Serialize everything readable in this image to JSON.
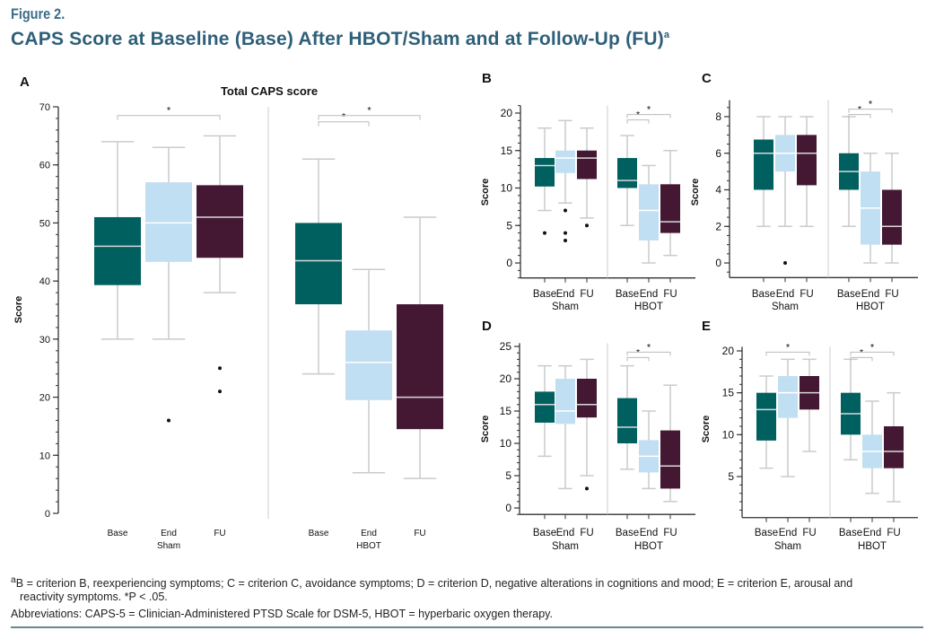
{
  "figure_label": "Figure 2.",
  "title": "CAPS Score at Baseline (Base) After HBOT/Sham and at Follow-Up (FU)",
  "title_sup": "a",
  "colors": {
    "Base": "#00605f",
    "End": "#c1dff2",
    "FU": "#441733",
    "whisker": "#c9cbcc",
    "median_dark": "#d8d8d8",
    "median_light": "#ffffff"
  },
  "footnotes": {
    "line1": "B = criterion B, reexperiencing symptoms; C = criterion C, avoidance symptoms; D = criterion D, negative alterations in cognitions and mood; E = criterion E, arousal and",
    "line1_sup": "a",
    "line2": "reactivity symptoms. *P < .05.",
    "line3": "Abbreviations: CAPS-5 = Clinician-Administered PTSD Scale for DSM-5, HBOT = hyperbaric oxygen therapy."
  },
  "chart_data": [
    {
      "panel": "A",
      "type": "box",
      "title": "Total CAPS score",
      "ylabel": "Score",
      "ylim": [
        0,
        70
      ],
      "yticks": [
        0,
        10,
        20,
        30,
        40,
        50,
        60,
        70
      ],
      "groups": [
        "Sham",
        "HBOT"
      ],
      "categories": [
        "Base",
        "End",
        "FU"
      ],
      "boxes": [
        {
          "group": "Sham",
          "cat": "Base",
          "min": 30,
          "q1": 39.3,
          "median": 46,
          "q3": 51,
          "max": 64,
          "outliers": []
        },
        {
          "group": "Sham",
          "cat": "End",
          "min": 30,
          "q1": 43.3,
          "median": 50,
          "q3": 57,
          "max": 63,
          "outliers": [
            16
          ]
        },
        {
          "group": "Sham",
          "cat": "FU",
          "min": 38,
          "q1": 44,
          "median": 51,
          "q3": 56.5,
          "max": 65,
          "outliers": [
            25,
            21
          ]
        },
        {
          "group": "HBOT",
          "cat": "Base",
          "min": 24,
          "q1": 36,
          "median": 43.5,
          "q3": 50,
          "max": 61,
          "outliers": []
        },
        {
          "group": "HBOT",
          "cat": "End",
          "min": 7,
          "q1": 19.5,
          "median": 26,
          "q3": 31.5,
          "max": 42,
          "outliers": []
        },
        {
          "group": "HBOT",
          "cat": "FU",
          "min": 6,
          "q1": 14.5,
          "median": 20,
          "q3": 36,
          "max": 51,
          "outliers": []
        }
      ],
      "significance": [
        {
          "group": "Sham",
          "from": "Base",
          "to": "FU",
          "label": "*"
        },
        {
          "group": "HBOT",
          "from": "Base",
          "to": "End",
          "label": "*"
        },
        {
          "group": "HBOT",
          "from": "Base",
          "to": "FU",
          "label": "*"
        }
      ]
    },
    {
      "panel": "B",
      "type": "box",
      "ylabel": "Score",
      "ylim": [
        -2,
        21
      ],
      "yticks": [
        0,
        5,
        10,
        15,
        20
      ],
      "groups": [
        "Sham",
        "HBOT"
      ],
      "categories": [
        "Base",
        "End",
        "FU"
      ],
      "boxes": [
        {
          "group": "Sham",
          "cat": "Base",
          "min": 7,
          "q1": 10.2,
          "median": 13,
          "q3": 14,
          "max": 18,
          "outliers": [
            4
          ]
        },
        {
          "group": "Sham",
          "cat": "End",
          "min": 8,
          "q1": 12,
          "median": 14,
          "q3": 15,
          "max": 19,
          "outliers": [
            7,
            4,
            3
          ]
        },
        {
          "group": "Sham",
          "cat": "FU",
          "min": 6,
          "q1": 11.2,
          "median": 14,
          "q3": 15,
          "max": 18,
          "outliers": [
            5
          ]
        },
        {
          "group": "HBOT",
          "cat": "Base",
          "min": 5,
          "q1": 10,
          "median": 11,
          "q3": 14,
          "max": 17,
          "outliers": []
        },
        {
          "group": "HBOT",
          "cat": "End",
          "min": 0,
          "q1": 3,
          "median": 7,
          "q3": 10.5,
          "max": 13,
          "outliers": []
        },
        {
          "group": "HBOT",
          "cat": "FU",
          "min": 1,
          "q1": 4,
          "median": 5.5,
          "q3": 10.5,
          "max": 15,
          "outliers": []
        }
      ],
      "significance": [
        {
          "group": "HBOT",
          "from": "Base",
          "to": "End",
          "label": "*"
        },
        {
          "group": "HBOT",
          "from": "Base",
          "to": "FU",
          "label": "*"
        }
      ]
    },
    {
      "panel": "C",
      "type": "box",
      "ylabel": "Score",
      "ylim": [
        -0.8,
        8.9
      ],
      "yticks": [
        0,
        2,
        4,
        6,
        8
      ],
      "groups": [
        "Sham",
        "HBOT"
      ],
      "categories": [
        "Base",
        "End",
        "FU"
      ],
      "boxes": [
        {
          "group": "Sham",
          "cat": "Base",
          "min": 2,
          "q1": 4,
          "median": 6,
          "q3": 6.75,
          "max": 8,
          "outliers": []
        },
        {
          "group": "Sham",
          "cat": "End",
          "min": 2,
          "q1": 5,
          "median": 6,
          "q3": 7,
          "max": 8,
          "outliers": [
            0
          ]
        },
        {
          "group": "Sham",
          "cat": "FU",
          "min": 2,
          "q1": 4.25,
          "median": 6,
          "q3": 7,
          "max": 8,
          "outliers": []
        },
        {
          "group": "HBOT",
          "cat": "Base",
          "min": 2,
          "q1": 4,
          "median": 5,
          "q3": 6,
          "max": 8,
          "outliers": []
        },
        {
          "group": "HBOT",
          "cat": "End",
          "min": 0,
          "q1": 1,
          "median": 3,
          "q3": 5,
          "max": 6,
          "outliers": []
        },
        {
          "group": "HBOT",
          "cat": "FU",
          "min": 0,
          "q1": 1,
          "median": 2,
          "q3": 4,
          "max": 6,
          "outliers": []
        }
      ],
      "significance": [
        {
          "group": "HBOT",
          "from": "Base",
          "to": "End",
          "label": "*"
        },
        {
          "group": "HBOT",
          "from": "Base",
          "to": "FU",
          "label": "*"
        }
      ]
    },
    {
      "panel": "D",
      "type": "box",
      "ylabel": "Score",
      "ylim": [
        -1,
        25.5
      ],
      "yticks": [
        0,
        5,
        10,
        15,
        20,
        25
      ],
      "groups": [
        "Sham",
        "HBOT"
      ],
      "categories": [
        "Base",
        "End",
        "FU"
      ],
      "boxes": [
        {
          "group": "Sham",
          "cat": "Base",
          "min": 8,
          "q1": 13.2,
          "median": 16,
          "q3": 18,
          "max": 22,
          "outliers": []
        },
        {
          "group": "Sham",
          "cat": "End",
          "min": 3,
          "q1": 13,
          "median": 15,
          "q3": 20,
          "max": 22,
          "outliers": []
        },
        {
          "group": "Sham",
          "cat": "FU",
          "min": 5,
          "q1": 14,
          "median": 16,
          "q3": 20,
          "max": 23,
          "outliers": [
            3
          ]
        },
        {
          "group": "HBOT",
          "cat": "Base",
          "min": 6,
          "q1": 10,
          "median": 12.5,
          "q3": 17,
          "max": 22,
          "outliers": []
        },
        {
          "group": "HBOT",
          "cat": "End",
          "min": 3,
          "q1": 5.5,
          "median": 8,
          "q3": 10.5,
          "max": 15,
          "outliers": []
        },
        {
          "group": "HBOT",
          "cat": "FU",
          "min": 1,
          "q1": 3,
          "median": 6.5,
          "q3": 12,
          "max": 19,
          "outliers": []
        }
      ],
      "significance": [
        {
          "group": "HBOT",
          "from": "Base",
          "to": "End",
          "label": "*"
        },
        {
          "group": "HBOT",
          "from": "Base",
          "to": "FU",
          "label": "*"
        }
      ]
    },
    {
      "panel": "E",
      "type": "box",
      "ylabel": "Score",
      "ylim": [
        0.1,
        20.5
      ],
      "yticks": [
        5,
        10,
        15,
        20
      ],
      "groups": [
        "Sham",
        "HBOT"
      ],
      "categories": [
        "Base",
        "End",
        "FU"
      ],
      "boxes": [
        {
          "group": "Sham",
          "cat": "Base",
          "min": 6,
          "q1": 9.3,
          "median": 13,
          "q3": 15,
          "max": 17,
          "outliers": []
        },
        {
          "group": "Sham",
          "cat": "End",
          "min": 5,
          "q1": 12,
          "median": 15,
          "q3": 17,
          "max": 19,
          "outliers": []
        },
        {
          "group": "Sham",
          "cat": "FU",
          "min": 8,
          "q1": 13,
          "median": 15,
          "q3": 17,
          "max": 19,
          "outliers": []
        },
        {
          "group": "HBOT",
          "cat": "Base",
          "min": 7,
          "q1": 10,
          "median": 12.5,
          "q3": 15,
          "max": 19,
          "outliers": []
        },
        {
          "group": "HBOT",
          "cat": "End",
          "min": 3,
          "q1": 6,
          "median": 8,
          "q3": 10,
          "max": 14,
          "outliers": []
        },
        {
          "group": "HBOT",
          "cat": "FU",
          "min": 2,
          "q1": 6,
          "median": 8,
          "q3": 11,
          "max": 15,
          "outliers": []
        }
      ],
      "significance": [
        {
          "group": "Sham",
          "from": "Base",
          "to": "FU",
          "label": "*"
        },
        {
          "group": "HBOT",
          "from": "Base",
          "to": "End",
          "label": "*"
        },
        {
          "group": "HBOT",
          "from": "Base",
          "to": "FU",
          "label": "*"
        }
      ]
    }
  ]
}
